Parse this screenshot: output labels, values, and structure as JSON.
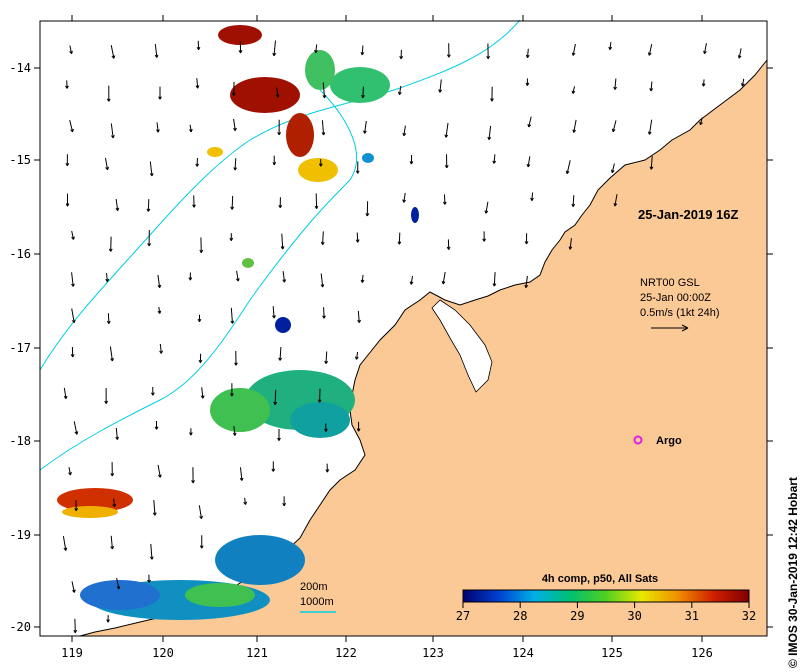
{
  "map": {
    "lon_ticks": [
      "119",
      "120",
      "121",
      "122",
      "123",
      "124",
      "125",
      "126"
    ],
    "lat_ticks": [
      "-14",
      "-15",
      "-16",
      "-17",
      "-18",
      "-19",
      "-20"
    ],
    "lon_range": [
      118.7,
      126.7
    ],
    "lat_range": [
      -20.1,
      -13.5
    ]
  },
  "timestamp_label": "25-Jan-2019 16Z",
  "current_info": {
    "line1": "NRT00 GSL",
    "line2": "25-Jan 00:00Z",
    "line3": "0.5m/s (1kt 24h)"
  },
  "argo": {
    "label": "Argo",
    "lon": 125.3,
    "lat": -18.0,
    "color": "#e020e0"
  },
  "bathymetry_legend": {
    "line1": "200m",
    "line2": "1000m",
    "color": "#00d0e0"
  },
  "colorbar": {
    "title": "4h comp, p50, All Sats",
    "ticks": [
      "27",
      "28",
      "29",
      "30",
      "31",
      "32"
    ],
    "range": [
      27,
      32
    ],
    "colors": [
      "#00006e",
      "#0040d0",
      "#00b0e8",
      "#00c070",
      "#50d020",
      "#e8e800",
      "#f09000",
      "#d02000",
      "#800000"
    ]
  },
  "credit": "© IMOS 30-Jan-2019 12:42 Hobart",
  "colors": {
    "land": "#fbc995",
    "sea": "#ffffff",
    "frame": "#000000"
  }
}
